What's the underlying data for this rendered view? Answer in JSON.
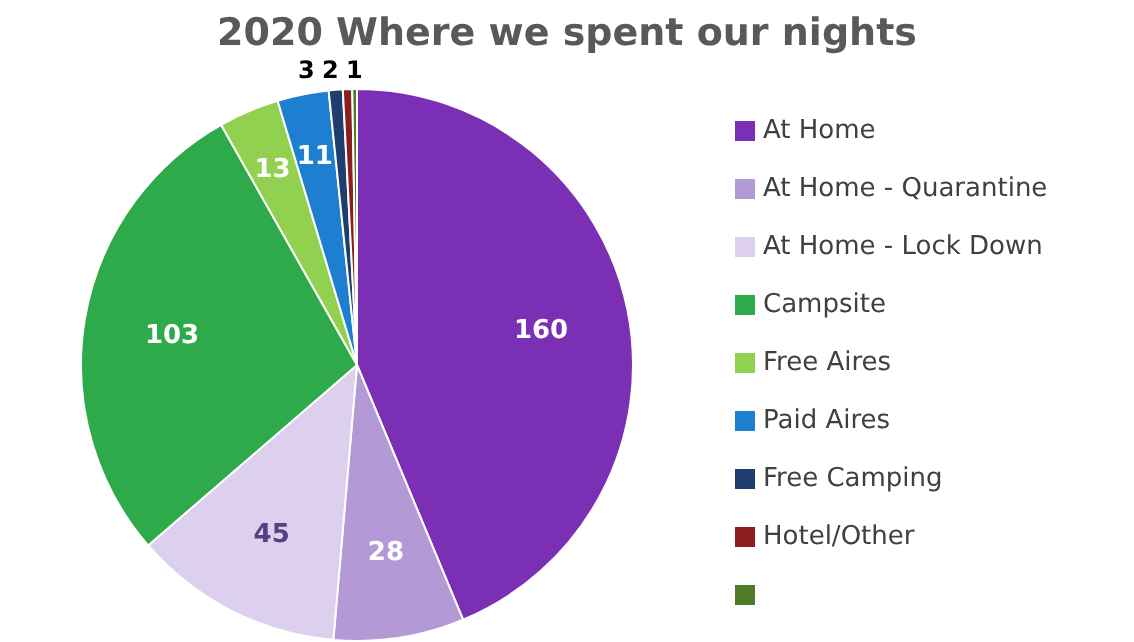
{
  "chart_data": {
    "type": "pie",
    "title": "2020 Where we spent our nights",
    "categories": [
      "At Home",
      "At Home - Quarantine",
      "At Home - Lock Down",
      "Campsite",
      "Free Aires",
      "Paid Aires",
      "Free Camping",
      "Hotel/Other",
      null
    ],
    "values": [
      160,
      28,
      45,
      103,
      13,
      11,
      3,
      2,
      1
    ],
    "colors": [
      "#7b2fb5",
      "#b39ad6",
      "#dcd0ee",
      "#2eaa4a",
      "#92d050",
      "#1e7fd0",
      "#1f3d6e",
      "#8b1f1f",
      "#4f7a28"
    ],
    "data_labels": true,
    "legend": "right"
  }
}
